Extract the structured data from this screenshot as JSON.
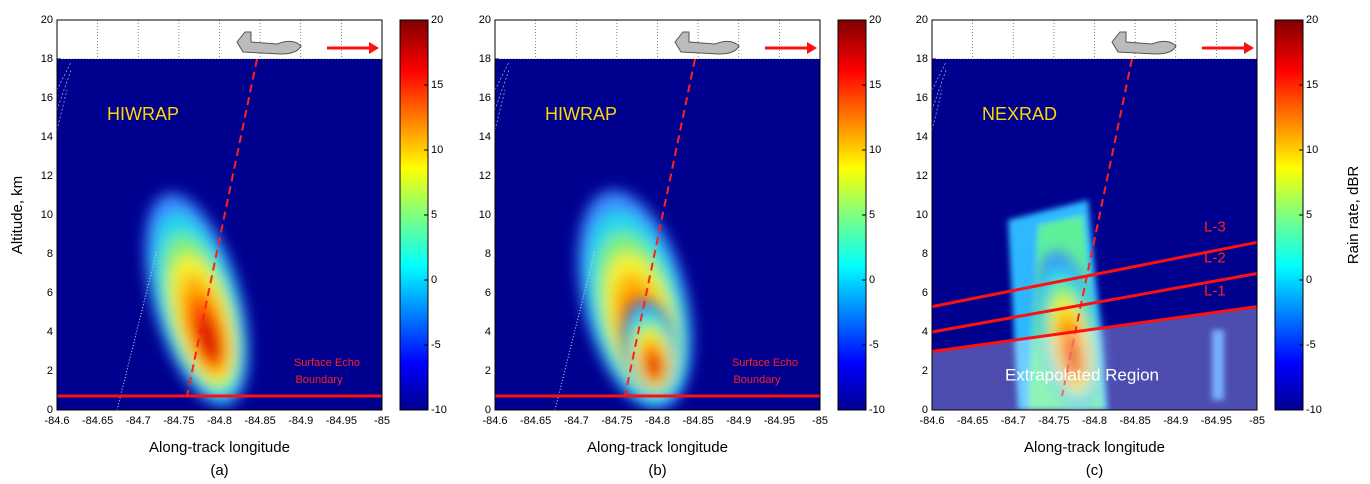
{
  "chart_data": [
    {
      "type": "heatmap",
      "panel_label": "HIWRAP",
      "note_lines": [
        "Surface Echo",
        "Boundary"
      ],
      "xlabel": "Along-track longitude",
      "caption": "(a)",
      "ylabel": "Altitude, km",
      "xlim": [
        -84.6,
        -85
      ],
      "xticks": [
        -84.6,
        -84.65,
        -84.7,
        -84.75,
        -84.8,
        -84.85,
        -84.9,
        -84.95,
        -85
      ],
      "ylim": [
        0,
        20
      ],
      "yticks": [
        0,
        2,
        4,
        6,
        8,
        10,
        12,
        14,
        16,
        18,
        20
      ],
      "colorbar_lim": [
        -10,
        20
      ],
      "colorbar_ticks": [
        -10,
        -5,
        0,
        5,
        10,
        15,
        20
      ],
      "grid": true
    },
    {
      "type": "heatmap",
      "panel_label": "HIWRAP",
      "note_lines": [
        "Surface Echo",
        "Boundary"
      ],
      "xlabel": "Along-track longitude",
      "caption": "(b)",
      "xlim": [
        -84.6,
        -85
      ],
      "xticks": [
        -84.6,
        -84.65,
        -84.7,
        -84.75,
        -84.8,
        -84.85,
        -84.9,
        -84.95,
        -85
      ],
      "ylim": [
        0,
        20
      ],
      "yticks": [
        0,
        2,
        4,
        6,
        8,
        10,
        12,
        14,
        16,
        18,
        20
      ],
      "colorbar_lim": [
        -10,
        20
      ],
      "colorbar_ticks": [
        -10,
        -5,
        0,
        5,
        10,
        15,
        20
      ],
      "grid": true
    },
    {
      "type": "heatmap",
      "panel_label": "NEXRAD",
      "line_labels": [
        "L-3",
        "L-2",
        "L-1"
      ],
      "region_label": "Extrapolated Region",
      "xlabel": "Along-track longitude",
      "caption": "(c)",
      "colorbar_label": "Rain rate, dBR",
      "xlim": [
        -84.6,
        -85
      ],
      "xticks": [
        -84.6,
        -84.65,
        -84.7,
        -84.75,
        -84.8,
        -84.85,
        -84.9,
        -84.95,
        -85
      ],
      "ylim": [
        0,
        20
      ],
      "yticks": [
        0,
        2,
        4,
        6,
        8,
        10,
        12,
        14,
        16,
        18,
        20
      ],
      "colorbar_lim": [
        -10,
        20
      ],
      "colorbar_ticks": [
        -10,
        -5,
        0,
        5,
        10,
        15,
        20
      ],
      "grid": true
    }
  ]
}
